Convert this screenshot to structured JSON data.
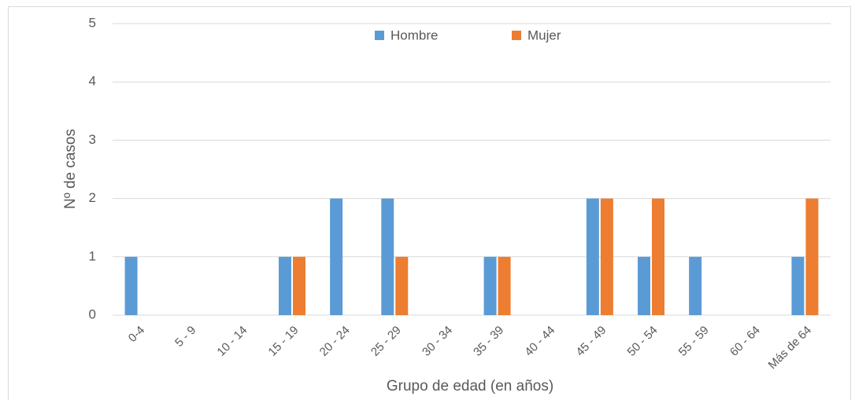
{
  "chart_data": {
    "type": "bar",
    "x_label": "Grupo de edad (en años)",
    "y_label": "Nº de casos",
    "categories": [
      "0-4",
      "5 - 9",
      "10 - 14",
      "15 - 19",
      "20 - 24",
      "25 - 29",
      "30 - 34",
      "35 - 39",
      "40 - 44",
      "45 - 49",
      "50 - 54",
      "55 - 59",
      "60 - 64",
      "Más de 64"
    ],
    "series": [
      {
        "name": "Hombre",
        "color": "#5b9bd5",
        "values": [
          1,
          0,
          0,
          1,
          2,
          2,
          0,
          1,
          0,
          2,
          1,
          1,
          0,
          1
        ]
      },
      {
        "name": "Mujer",
        "color": "#ed7d31",
        "values": [
          0,
          0,
          0,
          1,
          0,
          1,
          0,
          1,
          0,
          2,
          2,
          0,
          0,
          2
        ]
      }
    ],
    "ylim": [
      0,
      5
    ],
    "yticks": [
      0,
      1,
      2,
      3,
      4,
      5
    ],
    "grid": true,
    "legend": "top"
  }
}
